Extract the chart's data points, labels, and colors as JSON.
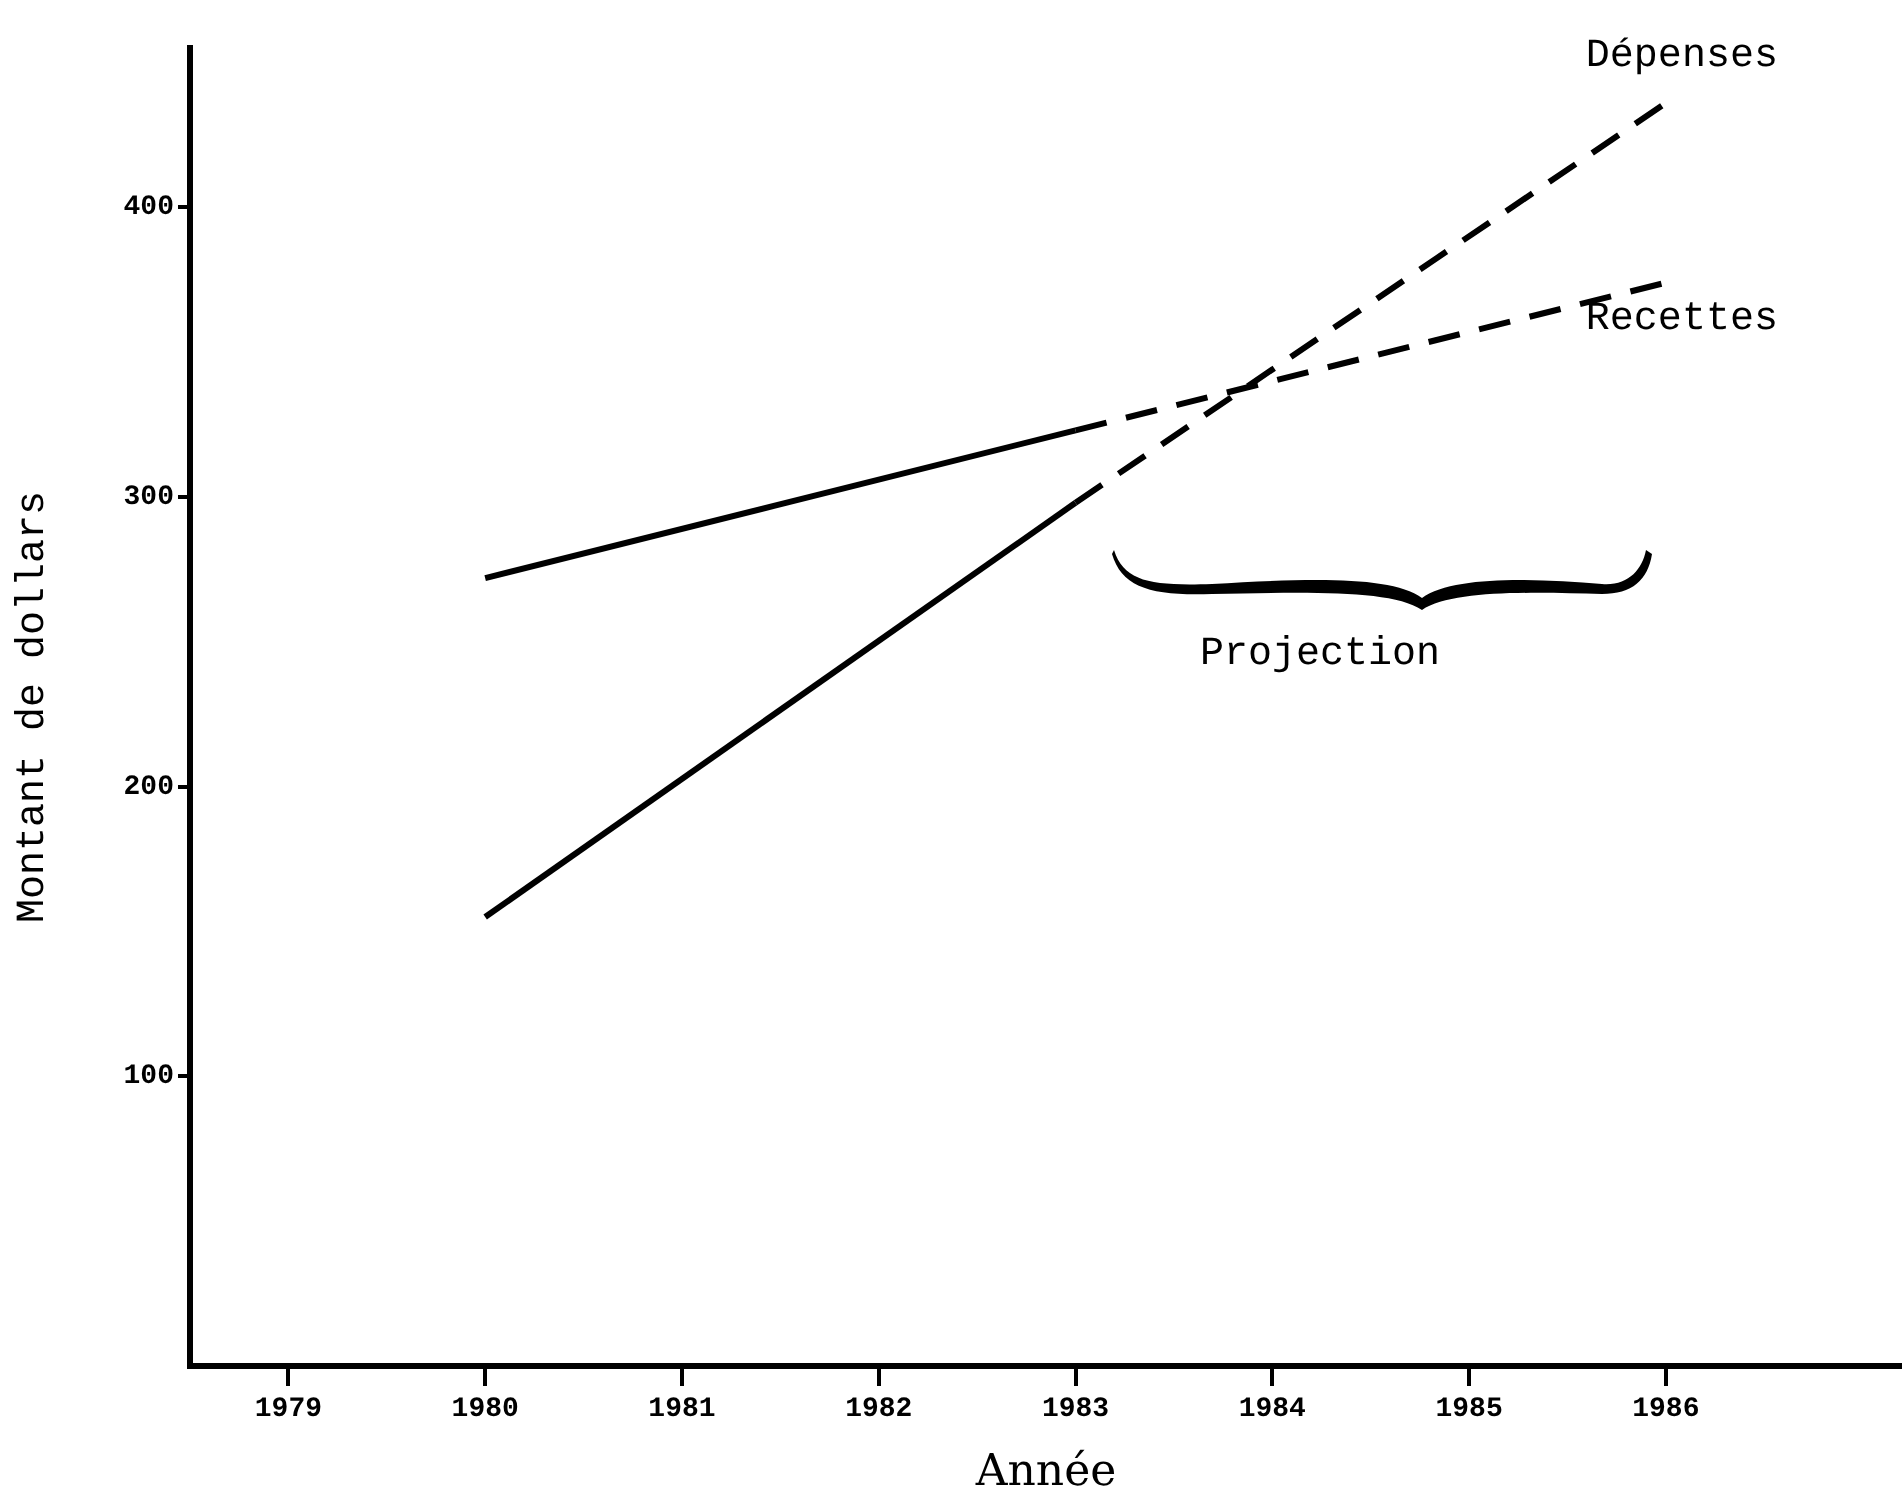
{
  "chart_data": {
    "type": "line",
    "xlabel": "Année",
    "ylabel": "Montant de dollars",
    "series": [
      {
        "color": "#000000",
        "x": [
          1980,
          1983
        ],
        "values": [
          272,
          323
        ],
        "line_style": "solid"
      },
      {
        "name": "Recettes",
        "color": "#000000",
        "x": [
          1983,
          1986
        ],
        "values": [
          323,
          374
        ],
        "line_style": "dashed"
      },
      {
        "color": "#000000",
        "x": [
          1980,
          1983
        ],
        "values": [
          155,
          298
        ],
        "line_style": "solid"
      },
      {
        "name": "Dépenses",
        "color": "#000000",
        "x": [
          1983,
          1986
        ],
        "values": [
          298,
          436
        ],
        "line_style": "dashed"
      }
    ],
    "annotations": [
      "Projection"
    ],
    "xlim": [
      1978.5,
      1987.2
    ],
    "xticks": [
      1979,
      1980,
      1981,
      1982,
      1983,
      1984,
      1985,
      1986
    ],
    "ylim": [
      0,
      455
    ],
    "yticks": [
      100,
      200,
      300,
      400
    ],
    "grid": false,
    "legend": false,
    "marker": "none"
  }
}
